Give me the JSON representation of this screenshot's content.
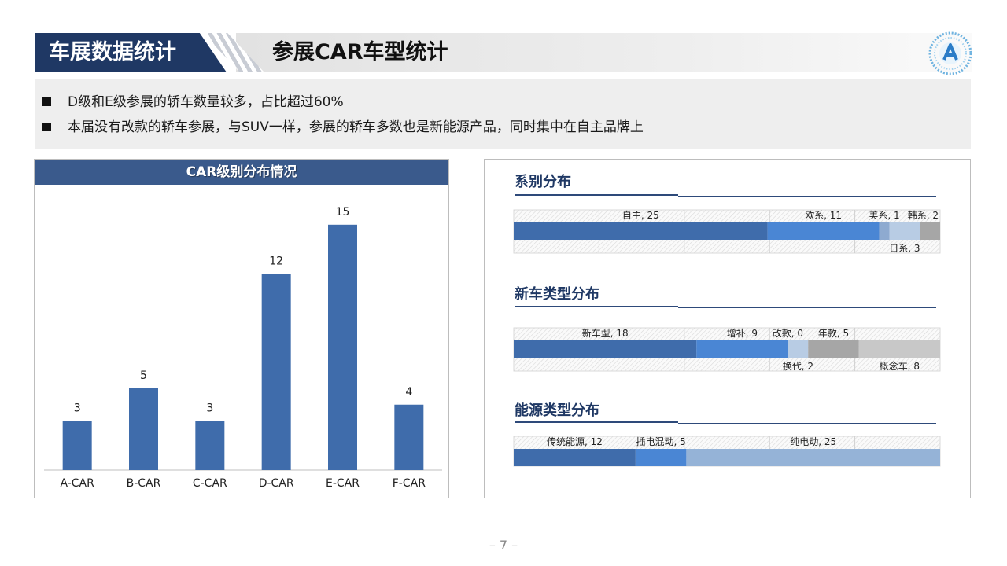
{
  "header": {
    "section_label": "车展数据统计",
    "title": "参展CAR车型统计"
  },
  "bullets": [
    "D级和E级参展的轿车数量较多，占比超过60%",
    "本届没有改款的轿车参展，与SUV一样，参展的轿车多数也是新能源产品，同时集中在自主品牌上"
  ],
  "page_number": "– 7 –",
  "colors": {
    "navy": "#1f3864",
    "bar_blue": "#3f6cab",
    "mid_blue": "#4a86d4",
    "light_blue": "#b8cce4",
    "gray": "#a6a6a6"
  },
  "chart_data": [
    {
      "type": "bar",
      "title": "CAR级别分布情况",
      "categories": [
        "A-CAR",
        "B-CAR",
        "C-CAR",
        "D-CAR",
        "E-CAR",
        "F-CAR"
      ],
      "values": [
        3,
        5,
        3,
        12,
        15,
        4
      ],
      "ylim": [
        0,
        16
      ],
      "grid": false,
      "data_labels": true
    },
    {
      "type": "stacked_bar",
      "title": "系别分布",
      "segments": [
        {
          "name": "自主",
          "value": 25,
          "label": "自主, 25",
          "label_pos": "top",
          "color": "#3f6cab"
        },
        {
          "name": "欧系",
          "value": 11,
          "label": "欧系, 11",
          "label_pos": "top",
          "color": "#4a86d4"
        },
        {
          "name": "美系",
          "value": 1,
          "label": "美系, 1",
          "label_pos": "top",
          "color": "#8eaad0"
        },
        {
          "name": "日系",
          "value": 3,
          "label": "日系, 3",
          "label_pos": "bottom",
          "color": "#b8cce4"
        },
        {
          "name": "韩系",
          "value": 2,
          "label": "韩系, 2",
          "label_pos": "top",
          "color": "#a6a6a6"
        }
      ]
    },
    {
      "type": "stacked_bar",
      "title": "新车类型分布",
      "segments": [
        {
          "name": "新车型",
          "value": 18,
          "label": "新车型, 18",
          "label_pos": "top",
          "color": "#3f6cab"
        },
        {
          "name": "增补",
          "value": 9,
          "label": "增补, 9",
          "label_pos": "top",
          "color": "#4a86d4"
        },
        {
          "name": "改款",
          "value": 0,
          "label": "改款, 0",
          "label_pos": "top",
          "color": "#8eaad0"
        },
        {
          "name": "换代",
          "value": 2,
          "label": "换代, 2",
          "label_pos": "bottom",
          "color": "#b8cce4"
        },
        {
          "name": "年款",
          "value": 5,
          "label": "年款, 5",
          "label_pos": "top",
          "color": "#a6a6a6"
        },
        {
          "name": "概念车",
          "value": 8,
          "label": "概念车, 8",
          "label_pos": "bottom",
          "color": "#c8c8c8"
        }
      ]
    },
    {
      "type": "stacked_bar",
      "title": "能源类型分布",
      "segments": [
        {
          "name": "传统能源",
          "value": 12,
          "label": "传统能源, 12",
          "label_pos": "top",
          "color": "#3f6cab"
        },
        {
          "name": "插电混动",
          "value": 5,
          "label": "插电混动, 5",
          "label_pos": "top",
          "color": "#4a86d4"
        },
        {
          "name": "纯电动",
          "value": 25,
          "label": "纯电动, 25",
          "label_pos": "top",
          "color": "#95b3d7"
        }
      ]
    }
  ]
}
